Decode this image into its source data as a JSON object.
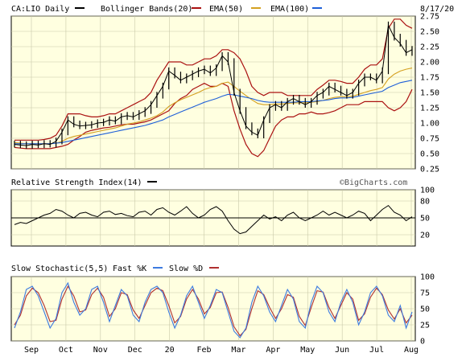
{
  "header": {
    "symbol": "CA:LIO Daily",
    "legend": [
      {
        "label": "Bollinger Bands(20)",
        "color": "#aa1111"
      },
      {
        "label": "EMA(50)",
        "color": "#d4a020"
      },
      {
        "label": "EMA(100)",
        "color": "#1e5fd8"
      }
    ],
    "symbol_swatch_color": "#000000",
    "date": "8/17/20"
  },
  "watermark": "©BigCharts.com",
  "x_labels": [
    "Sep",
    "Oct",
    "Nov",
    "Dec",
    "20",
    "Feb",
    "Mar",
    "Apr",
    "May",
    "Jun",
    "Jul",
    "Aug"
  ],
  "colors": {
    "panel_bg": "#ffffe0",
    "grid": "#c8c8a8",
    "price": "#000000",
    "bollinger": "#aa1111",
    "ema50": "#d4a020",
    "ema100": "#1e5fd8",
    "fast_k": "#3c7be0",
    "slow_d": "#b03030"
  },
  "chart_data": [
    {
      "type": "line",
      "name": "price",
      "title": "CA:LIO Daily",
      "ylim": [
        0.25,
        2.75
      ],
      "yticks": [
        "0.25",
        "0.50",
        "0.75",
        "1.00",
        "1.25",
        "1.50",
        "1.75",
        "2.00",
        "2.25",
        "2.50",
        "2.75"
      ],
      "series": [
        {
          "name": "CA:LIO Daily",
          "values": [
            0.65,
            0.64,
            0.63,
            0.65,
            0.64,
            0.66,
            0.65,
            0.7,
            0.85,
            1.05,
            0.98,
            0.95,
            0.96,
            0.97,
            1.0,
            1.01,
            1.05,
            1.03,
            1.1,
            1.12,
            1.1,
            1.15,
            1.2,
            1.3,
            1.45,
            1.6,
            1.85,
            1.78,
            1.7,
            1.75,
            1.8,
            1.85,
            1.88,
            1.82,
            1.9,
            2.1,
            2.0,
            1.5,
            1.2,
            0.95,
            0.85,
            0.8,
            1.05,
            1.25,
            1.3,
            1.25,
            1.35,
            1.4,
            1.35,
            1.3,
            1.35,
            1.45,
            1.5,
            1.6,
            1.55,
            1.5,
            1.45,
            1.5,
            1.65,
            1.75,
            1.75,
            1.7,
            1.85,
            2.6,
            2.4,
            2.3,
            2.15,
            2.2
          ]
        },
        {
          "name": "Bollinger Bands(20)",
          "values": [
            0.72,
            0.72,
            0.72,
            0.72,
            0.72,
            0.73,
            0.75,
            0.8,
            0.95,
            1.15,
            1.15,
            1.15,
            1.12,
            1.1,
            1.1,
            1.12,
            1.15,
            1.15,
            1.2,
            1.25,
            1.3,
            1.35,
            1.4,
            1.5,
            1.7,
            1.85,
            2.0,
            2.0,
            2.0,
            1.95,
            1.95,
            2.0,
            2.05,
            2.05,
            2.1,
            2.2,
            2.2,
            2.15,
            2.05,
            1.85,
            1.6,
            1.5,
            1.45,
            1.5,
            1.5,
            1.5,
            1.45,
            1.45,
            1.45,
            1.45,
            1.45,
            1.55,
            1.62,
            1.7,
            1.7,
            1.68,
            1.65,
            1.65,
            1.75,
            1.88,
            1.95,
            1.95,
            2.05,
            2.55,
            2.7,
            2.7,
            2.6,
            2.55
          ]
        },
        {
          "name": "Bollinger Bands(20) lower",
          "values": [
            0.6,
            0.59,
            0.58,
            0.58,
            0.58,
            0.58,
            0.58,
            0.6,
            0.62,
            0.65,
            0.72,
            0.78,
            0.85,
            0.88,
            0.9,
            0.92,
            0.93,
            0.95,
            0.97,
            0.98,
            0.98,
            1.0,
            1.02,
            1.05,
            1.1,
            1.15,
            1.2,
            1.32,
            1.4,
            1.45,
            1.55,
            1.6,
            1.65,
            1.6,
            1.6,
            1.65,
            1.6,
            1.2,
            0.9,
            0.65,
            0.5,
            0.45,
            0.55,
            0.75,
            0.95,
            1.05,
            1.1,
            1.1,
            1.15,
            1.15,
            1.18,
            1.15,
            1.15,
            1.17,
            1.2,
            1.25,
            1.3,
            1.3,
            1.3,
            1.35,
            1.35,
            1.35,
            1.35,
            1.25,
            1.2,
            1.25,
            1.35,
            1.55
          ]
        },
        {
          "name": "EMA(50)",
          "values": [
            0.68,
            0.67,
            0.66,
            0.66,
            0.66,
            0.66,
            0.66,
            0.67,
            0.7,
            0.75,
            0.78,
            0.8,
            0.82,
            0.84,
            0.86,
            0.88,
            0.9,
            0.92,
            0.95,
            0.98,
            1.0,
            1.02,
            1.05,
            1.08,
            1.12,
            1.18,
            1.27,
            1.33,
            1.38,
            1.42,
            1.46,
            1.5,
            1.55,
            1.58,
            1.6,
            1.65,
            1.67,
            1.6,
            1.52,
            1.45,
            1.38,
            1.32,
            1.3,
            1.3,
            1.31,
            1.31,
            1.32,
            1.33,
            1.33,
            1.33,
            1.34,
            1.35,
            1.37,
            1.4,
            1.42,
            1.43,
            1.43,
            1.44,
            1.47,
            1.5,
            1.53,
            1.55,
            1.58,
            1.72,
            1.8,
            1.85,
            1.88,
            1.9
          ]
        },
        {
          "name": "EMA(100)",
          "values": [
            0.66,
            0.66,
            0.66,
            0.66,
            0.66,
            0.66,
            0.66,
            0.67,
            0.68,
            0.7,
            0.72,
            0.74,
            0.76,
            0.78,
            0.8,
            0.82,
            0.84,
            0.86,
            0.88,
            0.9,
            0.92,
            0.94,
            0.96,
            0.99,
            1.02,
            1.05,
            1.1,
            1.14,
            1.18,
            1.22,
            1.26,
            1.3,
            1.34,
            1.37,
            1.4,
            1.44,
            1.47,
            1.46,
            1.44,
            1.42,
            1.4,
            1.37,
            1.35,
            1.34,
            1.34,
            1.34,
            1.34,
            1.34,
            1.35,
            1.35,
            1.35,
            1.36,
            1.37,
            1.38,
            1.4,
            1.41,
            1.41,
            1.42,
            1.44,
            1.46,
            1.48,
            1.5,
            1.52,
            1.58,
            1.62,
            1.66,
            1.68,
            1.7
          ]
        }
      ]
    },
    {
      "type": "line",
      "name": "rsi",
      "title": "Relative Strength Index(14)",
      "ylim": [
        0,
        100
      ],
      "yticks": [
        "20",
        "50",
        "80",
        "100"
      ],
      "reference_line": 50,
      "series": [
        {
          "name": "Relative Strength Index(14)",
          "values": [
            38,
            42,
            40,
            45,
            50,
            55,
            58,
            65,
            62,
            55,
            50,
            58,
            60,
            55,
            52,
            60,
            62,
            56,
            58,
            54,
            52,
            60,
            62,
            55,
            65,
            68,
            60,
            55,
            62,
            70,
            58,
            50,
            55,
            65,
            70,
            62,
            45,
            30,
            22,
            25,
            35,
            45,
            55,
            48,
            52,
            45,
            55,
            60,
            50,
            45,
            50,
            55,
            62,
            55,
            60,
            55,
            50,
            55,
            62,
            58,
            45,
            55,
            65,
            72,
            60,
            55,
            45,
            52
          ]
        }
      ]
    },
    {
      "type": "line",
      "name": "stochastic",
      "title": "Slow Stochastic(5,5)",
      "ylim": [
        0,
        100
      ],
      "yticks": [
        "0",
        "25",
        "50",
        "75",
        "100"
      ],
      "series": [
        {
          "name": "Fast %K",
          "values": [
            20,
            45,
            80,
            85,
            70,
            45,
            20,
            35,
            75,
            90,
            60,
            40,
            50,
            80,
            85,
            60,
            30,
            55,
            80,
            70,
            40,
            30,
            60,
            80,
            85,
            75,
            45,
            20,
            40,
            70,
            85,
            60,
            35,
            55,
            80,
            75,
            45,
            15,
            5,
            20,
            60,
            85,
            70,
            45,
            30,
            55,
            80,
            65,
            30,
            20,
            60,
            85,
            75,
            45,
            30,
            60,
            80,
            60,
            25,
            45,
            75,
            85,
            70,
            40,
            30,
            55,
            20,
            45
          ]
        },
        {
          "name": "Slow %D",
          "values": [
            25,
            40,
            70,
            82,
            75,
            55,
            30,
            32,
            65,
            85,
            70,
            45,
            48,
            72,
            82,
            68,
            38,
            50,
            75,
            72,
            48,
            35,
            55,
            75,
            82,
            78,
            55,
            28,
            38,
            65,
            80,
            65,
            42,
            52,
            75,
            76,
            52,
            22,
            8,
            18,
            50,
            78,
            72,
            52,
            35,
            50,
            72,
            68,
            38,
            24,
            52,
            78,
            76,
            52,
            35,
            55,
            75,
            65,
            32,
            42,
            68,
            82,
            72,
            48,
            34,
            50,
            28,
            40
          ]
        }
      ]
    }
  ]
}
